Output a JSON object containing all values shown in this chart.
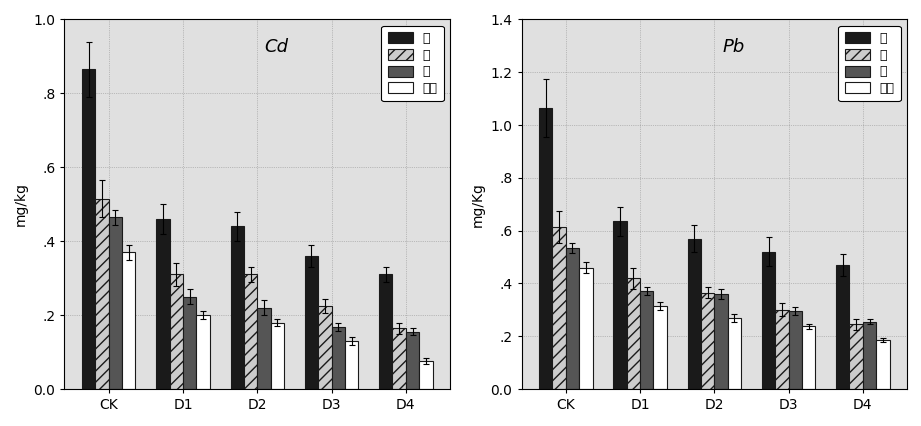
{
  "categories": [
    "CK",
    "D1",
    "D2",
    "D3",
    "D4"
  ],
  "cd": {
    "title": "Cd",
    "ylabel": "mg/kg",
    "ylim": [
      0.0,
      1.0
    ],
    "yticks": [
      0.0,
      0.2,
      0.4,
      0.6,
      0.8,
      1.0
    ],
    "yticklabels": [
      "0.0",
      ".2",
      ".4",
      ".6",
      ".8",
      "1.0"
    ],
    "bars": [
      [
        0.865,
        0.46,
        0.44,
        0.36,
        0.31
      ],
      [
        0.515,
        0.31,
        0.31,
        0.225,
        0.165
      ],
      [
        0.465,
        0.25,
        0.22,
        0.168,
        0.155
      ],
      [
        0.37,
        0.2,
        0.18,
        0.13,
        0.075
      ]
    ],
    "errors": [
      [
        0.075,
        0.04,
        0.04,
        0.03,
        0.02
      ],
      [
        0.05,
        0.03,
        0.02,
        0.02,
        0.015
      ],
      [
        0.02,
        0.02,
        0.02,
        0.01,
        0.01
      ],
      [
        0.02,
        0.01,
        0.01,
        0.01,
        0.008
      ]
    ]
  },
  "pb": {
    "title": "Pb",
    "ylabel": "mg/Kg",
    "ylim": [
      0.0,
      1.4
    ],
    "yticks": [
      0.0,
      0.2,
      0.4,
      0.6,
      0.8,
      1.0,
      1.2,
      1.4
    ],
    "yticklabels": [
      "0.0",
      ".2",
      ".4",
      ".6",
      ".8",
      "1.0",
      "1.2",
      "1.4"
    ],
    "bars": [
      [
        1.065,
        0.635,
        0.57,
        0.52,
        0.47
      ],
      [
        0.615,
        0.42,
        0.365,
        0.3,
        0.245
      ],
      [
        0.535,
        0.37,
        0.36,
        0.295,
        0.255
      ],
      [
        0.46,
        0.315,
        0.27,
        0.238,
        0.185
      ]
    ],
    "errors": [
      [
        0.11,
        0.055,
        0.05,
        0.055,
        0.04
      ],
      [
        0.06,
        0.04,
        0.02,
        0.025,
        0.02
      ],
      [
        0.02,
        0.015,
        0.02,
        0.015,
        0.01
      ],
      [
        0.02,
        0.015,
        0.015,
        0.01,
        0.008
      ]
    ]
  },
  "legend_labels": [
    "根",
    "茎",
    "叶",
    "籍子"
  ],
  "bar_colors": [
    "#1a1a1a",
    "#cccccc",
    "#555555",
    "#ffffff"
  ],
  "bar_hatches": [
    null,
    "///",
    null,
    null
  ],
  "bar_edgecolors": [
    "#1a1a1a",
    "#1a1a1a",
    "#1a1a1a",
    "#1a1a1a"
  ],
  "bar_width": 0.18,
  "background_color": "#e0e0e0",
  "legend_fontsize": 9,
  "axis_fontsize": 10,
  "title_fontsize": 13
}
